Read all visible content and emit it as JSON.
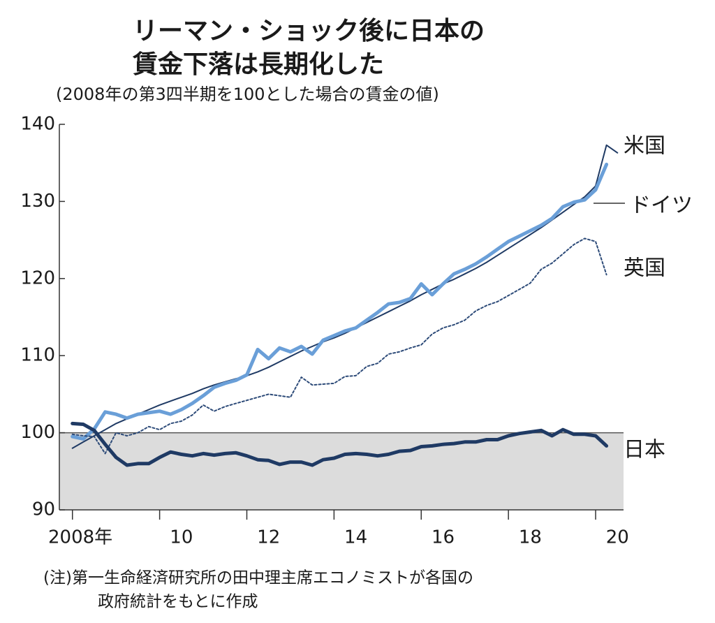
{
  "chart_data": {
    "type": "line",
    "title": [
      "リーマン・ショック後に日本の",
      "賃金下落は長期化した"
    ],
    "subtitle": "(2008年の第3四半期を100とした場合の賃金の値)",
    "note": [
      "(注)第一生命経済研究所の田中理主席エコノミストが各国の",
      "政府統計をもとに作成"
    ],
    "x": [
      2008.0,
      2008.25,
      2008.5,
      2008.75,
      2009.0,
      2009.25,
      2009.5,
      2009.75,
      2010.0,
      2010.25,
      2010.5,
      2010.75,
      2011.0,
      2011.25,
      2011.5,
      2011.75,
      2012.0,
      2012.25,
      2012.5,
      2012.75,
      2013.0,
      2013.25,
      2013.5,
      2013.75,
      2014.0,
      2014.25,
      2014.5,
      2014.75,
      2015.0,
      2015.25,
      2015.5,
      2015.75,
      2016.0,
      2016.25,
      2016.5,
      2016.75,
      2017.0,
      2017.25,
      2017.5,
      2017.75,
      2018.0,
      2018.25,
      2018.5,
      2018.75,
      2019.0,
      2019.25,
      2019.5,
      2019.75,
      2020.0,
      2020.25,
      2020.5
    ],
    "series": [
      {
        "name": "米国",
        "color": "#1f3a64",
        "style": "thin",
        "values": [
          98.0,
          98.8,
          99.6,
          100.4,
          101.2,
          101.8,
          102.4,
          103.0,
          103.6,
          104.1,
          104.6,
          105.1,
          105.7,
          106.2,
          106.6,
          107.0,
          107.4,
          107.9,
          108.5,
          109.2,
          109.9,
          110.6,
          111.2,
          111.8,
          112.3,
          112.9,
          113.6,
          114.3,
          115.0,
          115.7,
          116.4,
          117.1,
          117.9,
          118.6,
          119.3,
          119.9,
          120.6,
          121.3,
          122.1,
          123.0,
          123.9,
          124.8,
          125.7,
          126.6,
          127.6,
          128.6,
          129.6,
          130.6,
          132.0,
          137.3,
          136.3
        ]
      },
      {
        "name": "ドイツ",
        "color": "#6a9fd8",
        "style": "thick",
        "values": [
          99.5,
          99.2,
          100.5,
          102.7,
          102.4,
          101.9,
          102.4,
          102.6,
          102.8,
          102.4,
          103.0,
          103.8,
          104.8,
          105.9,
          106.4,
          106.8,
          107.5,
          110.8,
          109.6,
          111.0,
          110.5,
          111.2,
          110.2,
          112.0,
          112.6,
          113.2,
          113.6,
          114.6,
          115.6,
          116.7,
          116.9,
          117.4,
          119.3,
          117.9,
          119.3,
          120.6,
          121.2,
          121.9,
          122.8,
          123.8,
          124.8,
          125.5,
          126.2,
          126.9,
          127.8,
          129.3,
          129.9,
          130.2,
          131.5,
          134.8,
          null
        ]
      },
      {
        "name": "英国",
        "color": "#2c4a78",
        "style": "dotted",
        "values": [
          99.8,
          99.6,
          99.5,
          97.3,
          100.0,
          99.6,
          100.0,
          100.8,
          100.4,
          101.2,
          101.5,
          102.3,
          103.6,
          102.8,
          103.4,
          103.8,
          104.2,
          104.6,
          105.0,
          104.8,
          104.6,
          107.2,
          106.2,
          106.3,
          106.4,
          107.3,
          107.4,
          108.6,
          109.0,
          110.2,
          110.5,
          111.0,
          111.4,
          112.8,
          113.6,
          114.0,
          114.6,
          115.8,
          116.5,
          117.0,
          117.8,
          118.6,
          119.4,
          121.2,
          122.0,
          123.2,
          124.4,
          125.2,
          124.8,
          120.5,
          null
        ]
      },
      {
        "name": "日本",
        "color": "#1f3a64",
        "style": "thick",
        "values": [
          101.2,
          101.1,
          100.3,
          98.5,
          96.8,
          95.8,
          96.0,
          96.0,
          96.8,
          97.5,
          97.2,
          97.0,
          97.3,
          97.1,
          97.3,
          97.4,
          97.0,
          96.5,
          96.4,
          95.9,
          96.2,
          96.2,
          95.8,
          96.5,
          96.7,
          97.2,
          97.3,
          97.2,
          97.0,
          97.2,
          97.6,
          97.7,
          98.2,
          98.3,
          98.5,
          98.6,
          98.8,
          98.8,
          99.1,
          99.1,
          99.6,
          99.9,
          100.1,
          100.3,
          99.6,
          100.4,
          99.8,
          99.8,
          99.6,
          98.3,
          null
        ]
      }
    ],
    "xlim": [
      2007.7,
      2020.64
    ],
    "xticks": [
      {
        "value": 2008,
        "label": "2008年"
      },
      {
        "value": 2010,
        "label": "10"
      },
      {
        "value": 2012,
        "label": "12"
      },
      {
        "value": 2014,
        "label": "14"
      },
      {
        "value": 2016,
        "label": "16"
      },
      {
        "value": 2018,
        "label": "18"
      },
      {
        "value": 2020,
        "label": "20"
      }
    ],
    "ylim": [
      90,
      140
    ],
    "yticks": [
      90,
      100,
      110,
      120,
      130,
      140
    ],
    "reference_line": 100,
    "grid": false
  }
}
